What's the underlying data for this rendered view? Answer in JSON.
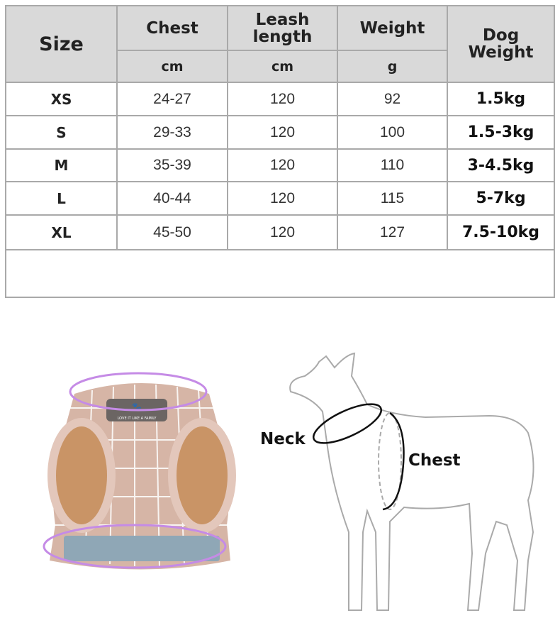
{
  "table": {
    "headers": {
      "size": "Size",
      "chest": "Chest",
      "leash": "Leash length",
      "weight": "Weight",
      "dog_weight": "Dog Weight"
    },
    "units": {
      "chest": "cm",
      "leash": "cm",
      "weight": "g"
    },
    "rows": [
      {
        "size": "XS",
        "chest": "24-27",
        "leash": "120",
        "weight": "92",
        "dog_weight": "1.5kg"
      },
      {
        "size": "S",
        "chest": "29-33",
        "leash": "120",
        "weight": "100",
        "dog_weight": "1.5-3kg"
      },
      {
        "size": "M",
        "chest": "35-39",
        "leash": "120",
        "weight": "110",
        "dog_weight": "3-4.5kg"
      },
      {
        "size": "L",
        "chest": "40-44",
        "leash": "120",
        "weight": "115",
        "dog_weight": "5-7kg"
      },
      {
        "size": "XL",
        "chest": "45-50",
        "leash": "120",
        "weight": "127",
        "dog_weight": "7.5-10kg"
      }
    ]
  },
  "harness": {
    "badge_text": "LOVE IT LIKE A FAMILY",
    "color": "#d6b5a6",
    "ring_color": "#c58be6"
  },
  "diagram": {
    "neck_label": "Neck",
    "chest_label": "Chest"
  }
}
